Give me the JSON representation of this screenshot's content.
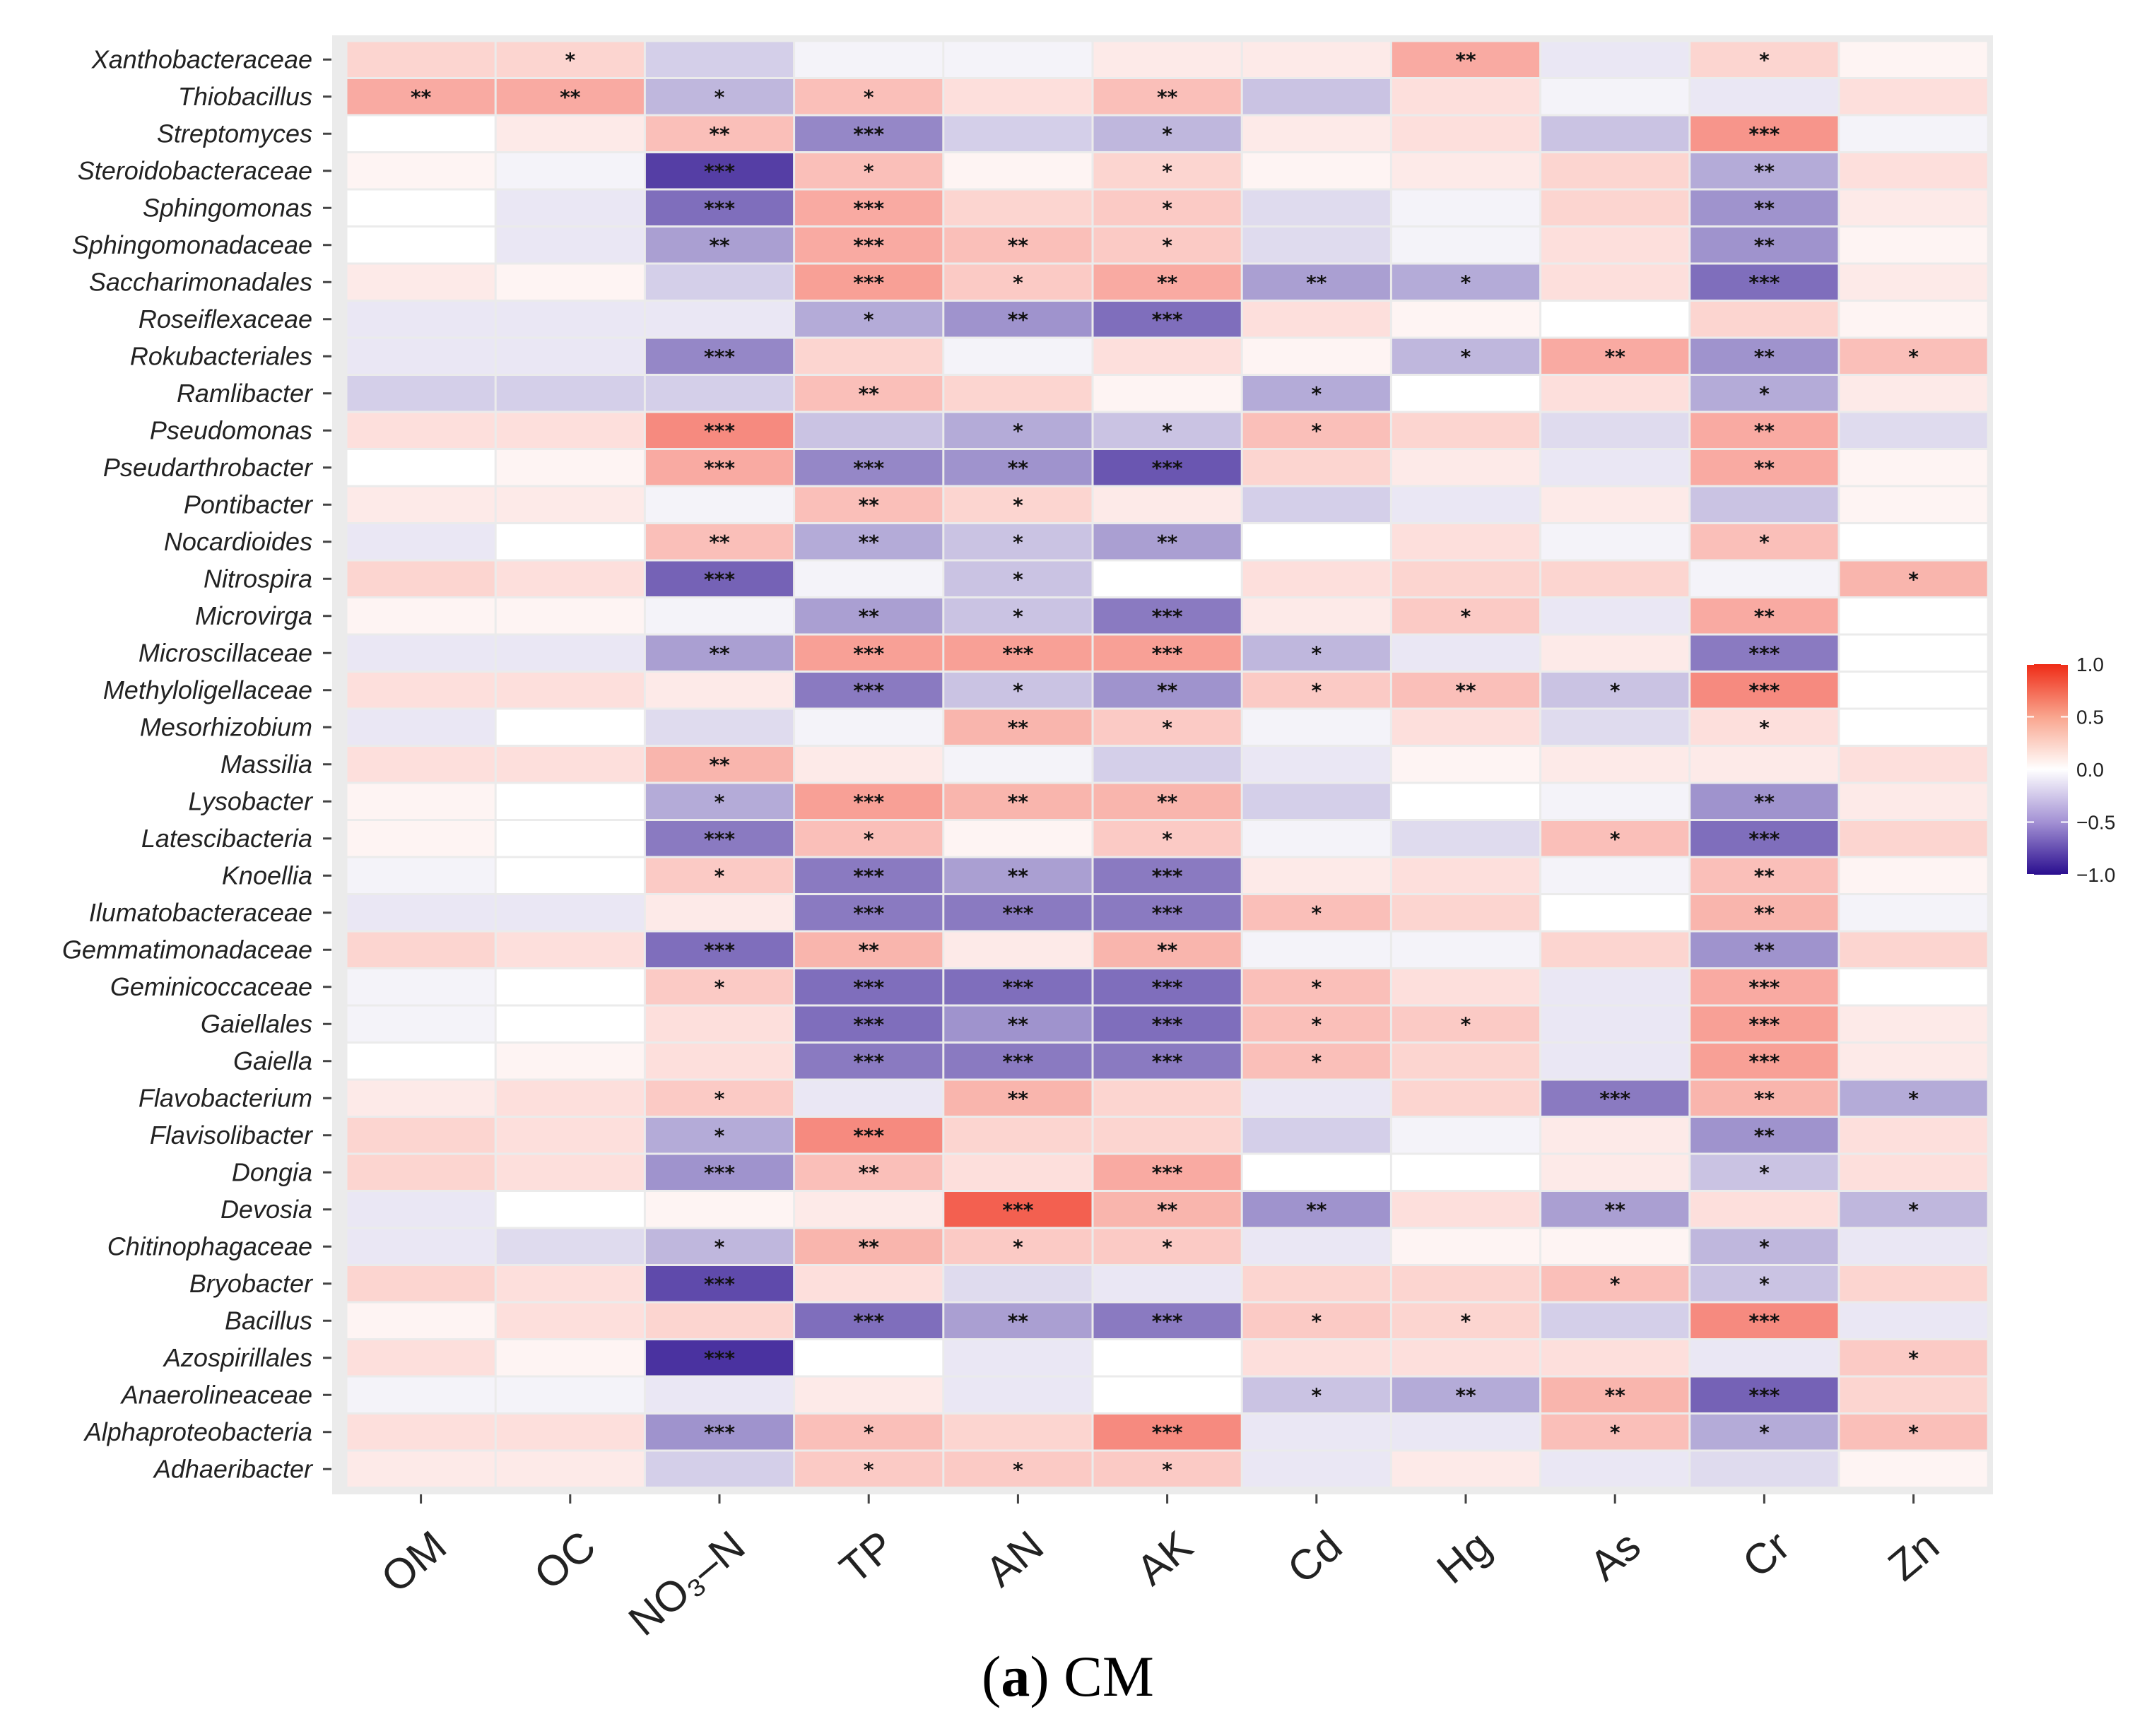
{
  "chart_data": {
    "type": "heatmap",
    "title": "",
    "caption_prefix": "(",
    "caption_letter": "a",
    "caption_suffix": ") CM",
    "xlabel": "",
    "ylabel": "",
    "columns": [
      "OM",
      "OC",
      "NO₃–N",
      "TP",
      "AN",
      "AK",
      "Cd",
      "Hg",
      "As",
      "Cr",
      "Zn"
    ],
    "rows": [
      "Xanthobacteraceae",
      "Thiobacillus",
      "Streptomyces",
      "Steroidobacteraceae",
      "Sphingomonas",
      "Sphingomonadaceae",
      "Saccharimonadales",
      "Roseiflexaceae",
      "Rokubacteriales",
      "Ramlibacter",
      "Pseudomonas",
      "Pseudarthrobacter",
      "Pontibacter",
      "Nocardioides",
      "Nitrospira",
      "Microvirga",
      "Microscillaceae",
      "Methyloligellaceae",
      "Mesorhizobium",
      "Massilia",
      "Lysobacter",
      "Latescibacteria",
      "Knoellia",
      "Ilumatobacteraceae",
      "Gemmatimonadaceae",
      "Geminicoccaceae",
      "Gaiellales",
      "Gaiella",
      "Flavobacterium",
      "Flavisolibacter",
      "Dongia",
      "Devosia",
      "Chitinophagaceae",
      "Bryobacter",
      "Bacillus",
      "Azospirillales",
      "Anaerolineaceae",
      "Alphaproteobacteria",
      "Adhaeribacter"
    ],
    "values": [
      [
        0.2,
        0.2,
        -0.2,
        -0.05,
        -0.05,
        0.1,
        0.1,
        0.4,
        -0.1,
        0.2,
        0.05
      ],
      [
        0.4,
        0.4,
        -0.3,
        0.3,
        0.15,
        0.3,
        -0.25,
        0.15,
        -0.05,
        -0.1,
        0.15
      ],
      [
        0.0,
        0.1,
        0.3,
        -0.5,
        -0.2,
        -0.3,
        0.1,
        0.15,
        -0.25,
        0.5,
        -0.05
      ],
      [
        0.05,
        -0.05,
        -0.8,
        0.3,
        0.05,
        0.2,
        0.05,
        0.1,
        0.2,
        -0.35,
        0.15
      ],
      [
        0.0,
        -0.1,
        -0.6,
        0.4,
        0.2,
        0.25,
        -0.15,
        -0.05,
        0.2,
        -0.45,
        0.1
      ],
      [
        0.0,
        -0.1,
        -0.4,
        0.4,
        0.3,
        0.25,
        -0.15,
        -0.05,
        0.15,
        -0.45,
        0.05
      ],
      [
        0.1,
        0.05,
        -0.2,
        0.45,
        0.25,
        0.4,
        -0.4,
        -0.35,
        0.15,
        -0.6,
        0.1
      ],
      [
        -0.1,
        -0.1,
        -0.1,
        -0.35,
        -0.45,
        -0.6,
        0.15,
        0.05,
        0.0,
        0.2,
        0.05
      ],
      [
        -0.1,
        -0.1,
        -0.5,
        0.2,
        -0.05,
        0.15,
        0.05,
        -0.3,
        0.4,
        -0.45,
        0.3
      ],
      [
        -0.2,
        -0.2,
        -0.2,
        0.3,
        0.2,
        0.05,
        -0.35,
        0.0,
        0.15,
        -0.35,
        0.1
      ],
      [
        0.15,
        0.15,
        0.55,
        -0.25,
        -0.35,
        -0.25,
        0.3,
        0.2,
        -0.15,
        0.4,
        -0.15
      ],
      [
        0.0,
        0.05,
        0.4,
        -0.5,
        -0.45,
        -0.7,
        0.2,
        0.1,
        -0.1,
        0.4,
        0.05
      ],
      [
        0.1,
        0.1,
        -0.05,
        0.3,
        0.2,
        0.1,
        -0.2,
        -0.1,
        0.1,
        -0.25,
        0.05
      ],
      [
        -0.1,
        0.0,
        0.3,
        -0.35,
        -0.25,
        -0.4,
        0.0,
        0.15,
        -0.05,
        0.3,
        0.0
      ],
      [
        0.2,
        0.15,
        -0.65,
        -0.05,
        -0.25,
        0.0,
        0.15,
        0.2,
        0.2,
        -0.05,
        0.35
      ],
      [
        0.05,
        0.05,
        -0.05,
        -0.4,
        -0.25,
        -0.55,
        0.1,
        0.25,
        -0.1,
        0.4,
        0.0
      ],
      [
        -0.1,
        -0.1,
        -0.4,
        0.45,
        0.45,
        0.45,
        -0.3,
        -0.1,
        0.1,
        -0.55,
        0.0
      ],
      [
        0.15,
        0.15,
        0.1,
        -0.55,
        -0.25,
        -0.45,
        0.25,
        0.3,
        -0.25,
        0.55,
        0.0
      ],
      [
        -0.1,
        0.0,
        -0.15,
        -0.05,
        0.35,
        0.25,
        -0.05,
        0.15,
        -0.15,
        0.15,
        0.0
      ],
      [
        0.15,
        0.15,
        0.35,
        0.1,
        -0.05,
        -0.2,
        -0.1,
        0.05,
        0.1,
        0.1,
        0.15
      ],
      [
        0.05,
        0.0,
        -0.35,
        0.45,
        0.35,
        0.35,
        -0.2,
        0.0,
        -0.05,
        -0.45,
        0.1
      ],
      [
        0.05,
        0.0,
        -0.55,
        0.3,
        0.05,
        0.25,
        -0.05,
        -0.15,
        0.3,
        -0.6,
        0.2
      ],
      [
        -0.05,
        0.0,
        0.25,
        -0.55,
        -0.4,
        -0.55,
        0.1,
        0.15,
        -0.05,
        0.3,
        0.05
      ],
      [
        -0.1,
        -0.1,
        0.1,
        -0.55,
        -0.55,
        -0.55,
        0.3,
        0.2,
        0.0,
        0.35,
        -0.05
      ],
      [
        0.2,
        0.15,
        -0.6,
        0.35,
        0.1,
        0.35,
        -0.05,
        -0.05,
        0.2,
        -0.45,
        0.2
      ],
      [
        -0.05,
        0.0,
        0.25,
        -0.6,
        -0.6,
        -0.6,
        0.3,
        0.15,
        -0.1,
        0.4,
        0.0
      ],
      [
        -0.05,
        0.0,
        0.15,
        -0.6,
        -0.45,
        -0.6,
        0.3,
        0.25,
        -0.1,
        0.45,
        0.1
      ],
      [
        0.0,
        0.05,
        0.15,
        -0.55,
        -0.55,
        -0.55,
        0.3,
        0.2,
        -0.1,
        0.45,
        0.1
      ],
      [
        0.1,
        0.15,
        0.25,
        -0.1,
        0.35,
        0.2,
        -0.1,
        0.2,
        -0.55,
        0.35,
        -0.35
      ],
      [
        0.2,
        0.15,
        -0.35,
        0.55,
        0.2,
        0.2,
        -0.2,
        -0.05,
        0.1,
        -0.45,
        0.15
      ],
      [
        0.2,
        0.15,
        -0.45,
        0.3,
        0.15,
        0.4,
        0.0,
        0.0,
        0.1,
        -0.25,
        0.15
      ],
      [
        -0.1,
        0.0,
        0.05,
        0.1,
        0.75,
        0.35,
        -0.45,
        0.15,
        -0.4,
        0.15,
        -0.3
      ],
      [
        -0.1,
        -0.15,
        -0.3,
        0.35,
        0.25,
        0.25,
        -0.1,
        0.05,
        0.05,
        -0.3,
        -0.1
      ],
      [
        0.2,
        0.15,
        -0.75,
        0.15,
        -0.15,
        -0.1,
        0.2,
        0.2,
        0.3,
        -0.25,
        0.2
      ],
      [
        0.05,
        0.15,
        0.2,
        -0.6,
        -0.4,
        -0.55,
        0.25,
        0.2,
        -0.2,
        0.55,
        -0.1
      ],
      [
        0.15,
        0.05,
        -0.85,
        0.0,
        -0.1,
        0.0,
        0.15,
        0.15,
        0.15,
        -0.1,
        0.25
      ],
      [
        -0.05,
        -0.05,
        -0.1,
        0.1,
        -0.1,
        0.0,
        -0.25,
        -0.35,
        0.35,
        -0.65,
        0.2
      ],
      [
        0.15,
        0.15,
        -0.45,
        0.3,
        0.2,
        0.55,
        -0.1,
        -0.1,
        0.3,
        -0.35,
        0.3
      ],
      [
        0.1,
        0.1,
        -0.2,
        0.25,
        0.25,
        0.25,
        -0.1,
        0.1,
        -0.1,
        -0.15,
        0.05
      ]
    ],
    "significance": [
      [
        "",
        "*",
        "",
        "",
        "",
        "",
        "",
        "**",
        "",
        "*",
        ""
      ],
      [
        "**",
        "**",
        "*",
        "*",
        "",
        "**",
        "",
        "",
        "",
        "",
        ""
      ],
      [
        "",
        "",
        "**",
        "***",
        "",
        "*",
        "",
        "",
        "",
        "***",
        ""
      ],
      [
        "",
        "",
        "***",
        "*",
        "",
        "*",
        "",
        "",
        "",
        "**",
        ""
      ],
      [
        "",
        "",
        "***",
        "***",
        "",
        "*",
        "",
        "",
        "",
        "**",
        ""
      ],
      [
        "",
        "",
        "**",
        "***",
        "**",
        "*",
        "",
        "",
        "",
        "**",
        ""
      ],
      [
        "",
        "",
        "",
        "***",
        "*",
        "**",
        "**",
        "*",
        "",
        "***",
        ""
      ],
      [
        "",
        "",
        "",
        "*",
        "**",
        "***",
        "",
        "",
        "",
        "",
        ""
      ],
      [
        "",
        "",
        "***",
        "",
        "",
        "",
        "",
        "*",
        "**",
        "**",
        "*"
      ],
      [
        "",
        "",
        "",
        "**",
        "",
        "",
        "*",
        "",
        "",
        "*",
        ""
      ],
      [
        "",
        "",
        "***",
        "",
        "*",
        "*",
        "*",
        "",
        "",
        "**",
        ""
      ],
      [
        "",
        "",
        "***",
        "***",
        "**",
        "***",
        "",
        "",
        "",
        "**",
        ""
      ],
      [
        "",
        "",
        "",
        "**",
        "*",
        "",
        "",
        "",
        "",
        "",
        ""
      ],
      [
        "",
        "",
        "**",
        "**",
        "*",
        "**",
        "",
        "",
        "",
        "*",
        ""
      ],
      [
        "",
        "",
        "***",
        "",
        "*",
        "",
        "",
        "",
        "",
        "",
        "*"
      ],
      [
        "",
        "",
        "",
        "**",
        "*",
        "***",
        "",
        "*",
        "",
        "**",
        ""
      ],
      [
        "",
        "",
        "**",
        "***",
        "***",
        "***",
        "*",
        "",
        "",
        "***",
        ""
      ],
      [
        "",
        "",
        "",
        "***",
        "*",
        "**",
        "*",
        "**",
        "*",
        "***",
        ""
      ],
      [
        "",
        "",
        "",
        "",
        "**",
        "*",
        "",
        "",
        "",
        "*",
        ""
      ],
      [
        "",
        "",
        "**",
        "",
        "",
        "",
        "",
        "",
        "",
        "",
        ""
      ],
      [
        "",
        "",
        "*",
        "***",
        "**",
        "**",
        "",
        "",
        "",
        "**",
        ""
      ],
      [
        "",
        "",
        "***",
        "*",
        "",
        "*",
        "",
        "",
        "*",
        "***",
        ""
      ],
      [
        "",
        "",
        "*",
        "***",
        "**",
        "***",
        "",
        "",
        "",
        "**",
        ""
      ],
      [
        "",
        "",
        "",
        "***",
        "***",
        "***",
        "*",
        "",
        "",
        "**",
        ""
      ],
      [
        "",
        "",
        "***",
        "**",
        "",
        "**",
        "",
        "",
        "",
        "**",
        ""
      ],
      [
        "",
        "",
        "*",
        "***",
        "***",
        "***",
        "*",
        "",
        "",
        "***",
        ""
      ],
      [
        "",
        "",
        "",
        "***",
        "**",
        "***",
        "*",
        "*",
        "",
        "***",
        ""
      ],
      [
        "",
        "",
        "",
        "***",
        "***",
        "***",
        "*",
        "",
        "",
        "***",
        ""
      ],
      [
        "",
        "",
        "*",
        "",
        "**",
        "",
        "",
        "",
        "***",
        "**",
        "*"
      ],
      [
        "",
        "",
        "*",
        "***",
        "",
        "",
        "",
        "",
        "",
        "**",
        ""
      ],
      [
        "",
        "",
        "***",
        "**",
        "",
        "***",
        "",
        "",
        "",
        "*",
        ""
      ],
      [
        "",
        "",
        "",
        "",
        "***",
        "**",
        "**",
        "",
        "**",
        "",
        "*"
      ],
      [
        "",
        "",
        "*",
        "**",
        "*",
        "*",
        "",
        "",
        "",
        "*",
        ""
      ],
      [
        "",
        "",
        "***",
        "",
        "",
        "",
        "",
        "",
        "*",
        "*",
        ""
      ],
      [
        "",
        "",
        "",
        "***",
        "**",
        "***",
        "*",
        "*",
        "",
        "***",
        ""
      ],
      [
        "",
        "",
        "***",
        "",
        "",
        "",
        "",
        "",
        "",
        "",
        "*"
      ],
      [
        "",
        "",
        "",
        "",
        "",
        "",
        "*",
        "**",
        "**",
        "***",
        ""
      ],
      [
        "",
        "",
        "***",
        "*",
        "",
        "***",
        "",
        "",
        "*",
        "*",
        "*"
      ],
      [
        "",
        "",
        "",
        "*",
        "*",
        "*",
        "",
        "",
        "",
        "",
        ""
      ]
    ],
    "legend": {
      "ticks": [
        1.0,
        0.5,
        0.0,
        -0.5,
        -1.0
      ],
      "tick_labels": [
        "1.0",
        "0.5",
        "0.0",
        "−0.5",
        "−1.0"
      ],
      "range": [
        -1.0,
        1.0
      ],
      "position": "right"
    },
    "colors": {
      "high": "#ef2b16",
      "mid": "#ffffff",
      "low": "#2a0e8f",
      "panel_bg": "#ebebeb"
    }
  }
}
